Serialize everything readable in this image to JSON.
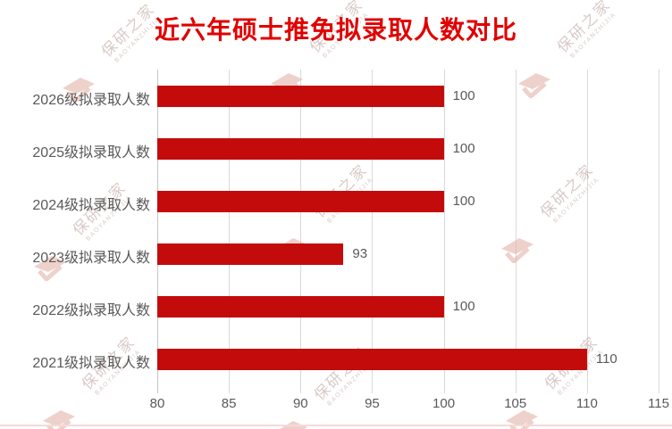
{
  "chart_data": {
    "type": "bar",
    "orientation": "horizontal",
    "title": "近六年硕士推免拟录取人数对比",
    "categories": [
      "2026级拟录取人数",
      "2025级拟录取人数",
      "2024级拟录取人数",
      "2023级拟录取人数",
      "2022级拟录取人数",
      "2021级拟录取人数"
    ],
    "values": [
      100,
      100,
      100,
      93,
      100,
      110
    ],
    "data_labels": [
      "100",
      "100",
      "100",
      "93",
      "100",
      "110"
    ],
    "xlabel": "",
    "ylabel": "",
    "xlim": [
      80,
      115
    ],
    "xticks": [
      80,
      85,
      90,
      95,
      100,
      105,
      110,
      115
    ],
    "grid": "vertical",
    "legend": "none",
    "bar_color": "#c40b0b",
    "title_color": "#e00000",
    "axis_label_color": "#595959",
    "gridline_color": "#d9d9d9"
  },
  "watermark": {
    "text": "保研之家",
    "subtext": "BAOYANZHIJIA",
    "text_color": "#c7aeab",
    "logo_color": "#e0ac9f",
    "logo_icon": "graduation-cap-icon"
  }
}
